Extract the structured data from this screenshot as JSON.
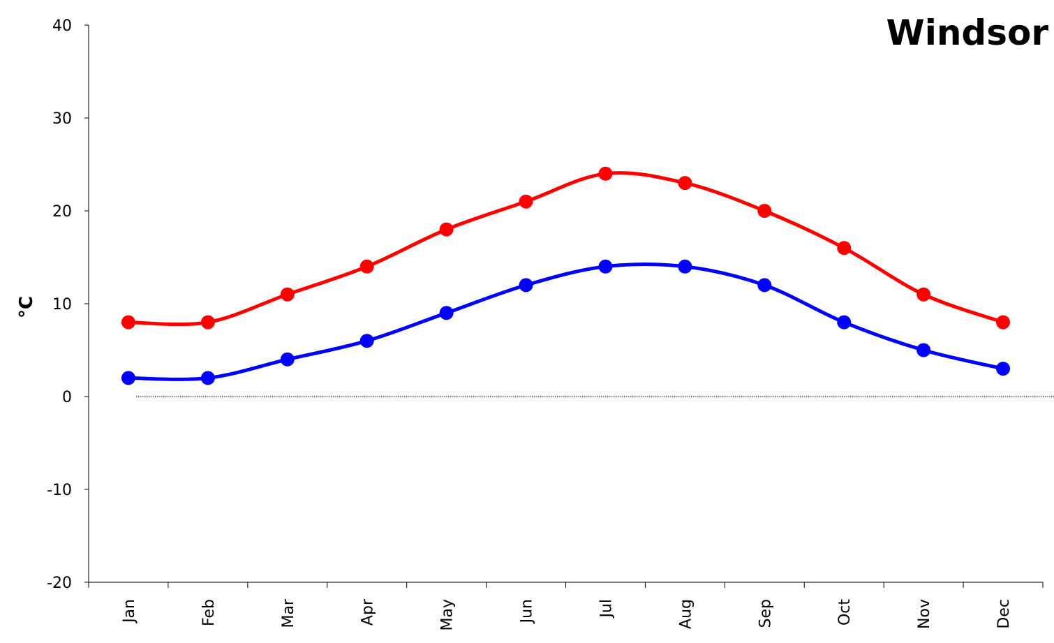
{
  "chart_data": {
    "type": "line",
    "title": "Windsor",
    "xlabel": "",
    "ylabel": "°C",
    "categories": [
      "Jan",
      "Feb",
      "Mar",
      "Apr",
      "May",
      "Jun",
      "Jul",
      "Aug",
      "Sep",
      "Oct",
      "Nov",
      "Dec"
    ],
    "series": [
      {
        "color": "#ff0000",
        "values": [
          8,
          8,
          11,
          14,
          18,
          21,
          24,
          23,
          20,
          16,
          11,
          8
        ]
      },
      {
        "color": "#0000ff",
        "values": [
          2,
          2,
          4,
          6,
          9,
          12,
          14,
          14,
          12,
          8,
          5,
          3
        ]
      }
    ],
    "ylim": [
      -20,
      40
    ],
    "yticks": [
      "40",
      "30",
      "20",
      "10",
      "0",
      "-10",
      "-20"
    ],
    "grid": false,
    "zero_line": "dotted"
  }
}
